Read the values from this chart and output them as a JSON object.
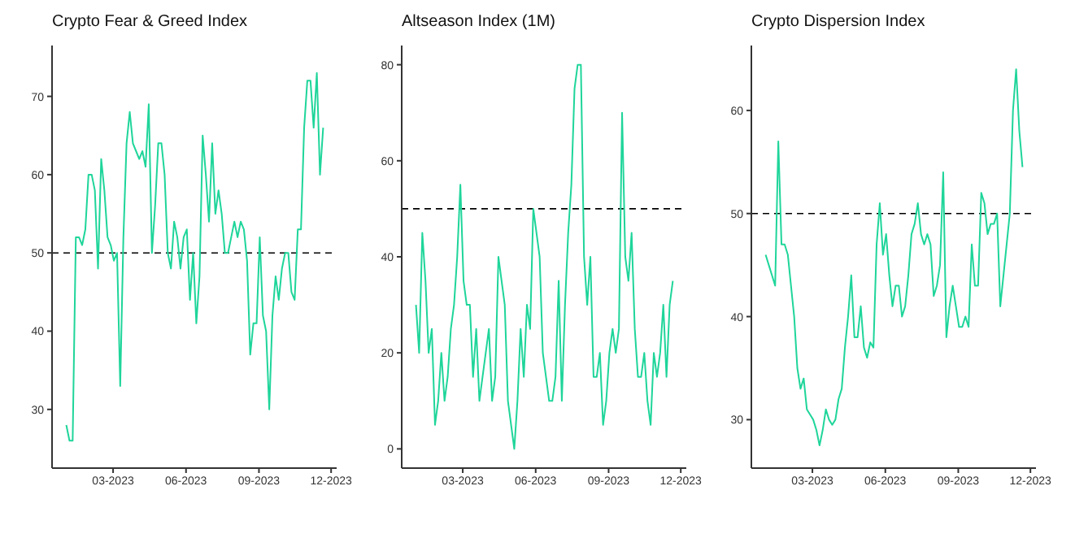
{
  "chart_data": [
    {
      "type": "line",
      "title": "Crypto Fear & Greed Index",
      "color": "#1fd59a",
      "x": [
        "2023-01-01",
        "2023-01-05",
        "2023-01-09",
        "2023-01-13",
        "2023-01-17",
        "2023-01-21",
        "2023-01-25",
        "2023-01-29",
        "2023-02-02",
        "2023-02-06",
        "2023-02-10",
        "2023-02-14",
        "2023-02-18",
        "2023-02-22",
        "2023-02-26",
        "2023-03-02",
        "2023-03-06",
        "2023-03-10",
        "2023-03-14",
        "2023-03-18",
        "2023-03-22",
        "2023-03-26",
        "2023-03-30",
        "2023-04-03",
        "2023-04-07",
        "2023-04-11",
        "2023-04-15",
        "2023-04-19",
        "2023-04-23",
        "2023-04-27",
        "2023-05-01",
        "2023-05-05",
        "2023-05-09",
        "2023-05-13",
        "2023-05-17",
        "2023-05-21",
        "2023-05-25",
        "2023-05-29",
        "2023-06-02",
        "2023-06-06",
        "2023-06-10",
        "2023-06-14",
        "2023-06-18",
        "2023-06-22",
        "2023-06-26",
        "2023-06-30",
        "2023-07-04",
        "2023-07-08",
        "2023-07-12",
        "2023-07-16",
        "2023-07-20",
        "2023-07-24",
        "2023-07-28",
        "2023-08-01",
        "2023-08-05",
        "2023-08-09",
        "2023-08-13",
        "2023-08-17",
        "2023-08-21",
        "2023-08-25",
        "2023-08-29",
        "2023-09-02",
        "2023-09-06",
        "2023-09-10",
        "2023-09-14",
        "2023-09-18",
        "2023-09-22",
        "2023-09-26",
        "2023-09-30",
        "2023-10-04",
        "2023-10-08",
        "2023-10-12",
        "2023-10-16",
        "2023-10-20",
        "2023-10-24",
        "2023-10-28",
        "2023-11-01",
        "2023-11-05",
        "2023-11-09",
        "2023-11-13",
        "2023-11-17",
        "2023-11-21"
      ],
      "values": [
        28,
        26,
        26,
        52,
        52,
        51,
        53,
        60,
        60,
        58,
        48,
        62,
        58,
        52,
        51,
        49,
        50,
        33,
        52,
        64,
        68,
        64,
        63,
        62,
        63,
        61,
        69,
        50,
        56,
        64,
        64,
        60,
        50,
        48,
        54,
        52,
        48,
        52,
        53,
        44,
        50,
        41,
        47,
        65,
        60,
        54,
        64,
        55,
        58,
        55,
        50,
        50,
        52,
        54,
        52,
        54,
        53,
        49,
        37,
        41,
        41,
        52,
        42,
        40,
        30,
        42,
        47,
        44,
        48,
        50,
        50,
        45,
        44,
        53,
        53,
        66,
        72,
        72,
        66,
        73,
        60,
        66
      ],
      "xlim": [
        "2022-12-14",
        "2023-12-08"
      ],
      "xticks": [
        {
          "value": "2023-03-01",
          "label": "03-2023"
        },
        {
          "value": "2023-06-01",
          "label": "06-2023"
        },
        {
          "value": "2023-09-01",
          "label": "09-2023"
        },
        {
          "value": "2023-12-01",
          "label": "12-2023"
        }
      ],
      "ylim": [
        22.5,
        76.5
      ],
      "yticks": [
        30,
        40,
        50,
        60,
        70
      ],
      "ref_lines": [
        {
          "axis": "y",
          "value": 50,
          "line_style": "dashed",
          "color": "#000000"
        }
      ]
    },
    {
      "type": "line",
      "title": "Altseason Index (1M)",
      "color": "#1fd59a",
      "x": [
        "2023-01-01",
        "2023-01-05",
        "2023-01-09",
        "2023-01-13",
        "2023-01-17",
        "2023-01-21",
        "2023-01-25",
        "2023-01-29",
        "2023-02-02",
        "2023-02-06",
        "2023-02-10",
        "2023-02-14",
        "2023-02-18",
        "2023-02-22",
        "2023-02-26",
        "2023-03-02",
        "2023-03-06",
        "2023-03-10",
        "2023-03-14",
        "2023-03-18",
        "2023-03-22",
        "2023-03-26",
        "2023-03-30",
        "2023-04-03",
        "2023-04-07",
        "2023-04-11",
        "2023-04-15",
        "2023-04-19",
        "2023-04-23",
        "2023-04-27",
        "2023-05-01",
        "2023-05-05",
        "2023-05-09",
        "2023-05-13",
        "2023-05-17",
        "2023-05-21",
        "2023-05-25",
        "2023-05-29",
        "2023-06-02",
        "2023-06-06",
        "2023-06-10",
        "2023-06-14",
        "2023-06-18",
        "2023-06-22",
        "2023-06-26",
        "2023-06-30",
        "2023-07-04",
        "2023-07-08",
        "2023-07-12",
        "2023-07-16",
        "2023-07-20",
        "2023-07-24",
        "2023-07-28",
        "2023-08-01",
        "2023-08-05",
        "2023-08-09",
        "2023-08-13",
        "2023-08-17",
        "2023-08-21",
        "2023-08-25",
        "2023-08-29",
        "2023-09-02",
        "2023-09-06",
        "2023-09-10",
        "2023-09-14",
        "2023-09-18",
        "2023-09-22",
        "2023-09-26",
        "2023-09-30",
        "2023-10-04",
        "2023-10-08",
        "2023-10-12",
        "2023-10-16",
        "2023-10-20",
        "2023-10-24",
        "2023-10-28",
        "2023-11-01",
        "2023-11-05",
        "2023-11-09",
        "2023-11-13",
        "2023-11-17",
        "2023-11-21"
      ],
      "values": [
        30,
        20,
        45,
        35,
        20,
        25,
        5,
        10,
        20,
        10,
        15,
        25,
        30,
        40,
        55,
        35,
        30,
        30,
        15,
        25,
        10,
        15,
        20,
        25,
        10,
        15,
        40,
        35,
        30,
        10,
        5,
        0,
        10,
        25,
        15,
        30,
        25,
        50,
        45,
        40,
        20,
        15,
        10,
        10,
        15,
        35,
        10,
        30,
        45,
        55,
        75,
        80,
        80,
        40,
        30,
        40,
        15,
        15,
        20,
        5,
        10,
        20,
        25,
        20,
        25,
        70,
        40,
        35,
        45,
        25,
        15,
        15,
        20,
        10,
        5,
        20,
        15,
        20,
        30,
        15,
        30,
        35
      ],
      "xlim": [
        "2022-12-14",
        "2023-12-08"
      ],
      "xticks": [
        {
          "value": "2023-03-01",
          "label": "03-2023"
        },
        {
          "value": "2023-06-01",
          "label": "06-2023"
        },
        {
          "value": "2023-09-01",
          "label": "09-2023"
        },
        {
          "value": "2023-12-01",
          "label": "12-2023"
        }
      ],
      "ylim": [
        -4,
        84
      ],
      "yticks": [
        0,
        20,
        40,
        60,
        80
      ],
      "ref_lines": [
        {
          "axis": "y",
          "value": 50,
          "line_style": "dashed",
          "color": "#000000"
        }
      ]
    },
    {
      "type": "line",
      "title": "Crypto Dispersion Index",
      "color": "#1fd59a",
      "x": [
        "2023-01-01",
        "2023-01-05",
        "2023-01-09",
        "2023-01-13",
        "2023-01-17",
        "2023-01-21",
        "2023-01-25",
        "2023-01-29",
        "2023-02-02",
        "2023-02-06",
        "2023-02-10",
        "2023-02-14",
        "2023-02-18",
        "2023-02-22",
        "2023-02-26",
        "2023-03-02",
        "2023-03-06",
        "2023-03-10",
        "2023-03-14",
        "2023-03-18",
        "2023-03-22",
        "2023-03-26",
        "2023-03-30",
        "2023-04-03",
        "2023-04-07",
        "2023-04-11",
        "2023-04-15",
        "2023-04-19",
        "2023-04-23",
        "2023-04-27",
        "2023-05-01",
        "2023-05-05",
        "2023-05-09",
        "2023-05-13",
        "2023-05-17",
        "2023-05-21",
        "2023-05-25",
        "2023-05-29",
        "2023-06-02",
        "2023-06-06",
        "2023-06-10",
        "2023-06-14",
        "2023-06-18",
        "2023-06-22",
        "2023-06-26",
        "2023-06-30",
        "2023-07-04",
        "2023-07-08",
        "2023-07-12",
        "2023-07-16",
        "2023-07-20",
        "2023-07-24",
        "2023-07-28",
        "2023-08-01",
        "2023-08-05",
        "2023-08-09",
        "2023-08-13",
        "2023-08-17",
        "2023-08-21",
        "2023-08-25",
        "2023-08-29",
        "2023-09-02",
        "2023-09-06",
        "2023-09-10",
        "2023-09-14",
        "2023-09-18",
        "2023-09-22",
        "2023-09-26",
        "2023-09-30",
        "2023-10-04",
        "2023-10-08",
        "2023-10-12",
        "2023-10-16",
        "2023-10-20",
        "2023-10-24",
        "2023-10-28",
        "2023-11-01",
        "2023-11-05",
        "2023-11-09",
        "2023-11-13",
        "2023-11-17",
        "2023-11-21"
      ],
      "values": [
        46,
        45,
        44,
        43,
        57,
        47,
        47,
        46,
        43,
        40,
        35,
        33,
        34,
        31,
        30.5,
        30,
        29,
        27.5,
        29,
        31,
        30,
        29.5,
        30,
        32,
        33,
        37,
        40,
        44,
        38,
        38,
        41,
        37,
        36,
        37.5,
        37,
        47,
        51,
        46,
        48,
        44,
        41,
        43,
        43,
        40,
        41,
        44,
        48,
        49,
        51,
        48,
        47,
        48,
        47,
        42,
        43,
        45,
        54,
        38,
        41,
        43,
        41,
        39,
        39,
        40,
        39,
        47,
        43,
        43,
        52,
        51,
        48,
        49,
        49,
        50,
        41,
        44,
        47,
        50,
        60,
        64,
        58,
        54.5
      ],
      "xlim": [
        "2022-12-14",
        "2023-12-08"
      ],
      "xticks": [
        {
          "value": "2023-03-01",
          "label": "03-2023"
        },
        {
          "value": "2023-06-01",
          "label": "06-2023"
        },
        {
          "value": "2023-09-01",
          "label": "09-2023"
        },
        {
          "value": "2023-12-01",
          "label": "12-2023"
        }
      ],
      "ylim": [
        25.3,
        66.3
      ],
      "yticks": [
        30,
        40,
        50,
        60
      ],
      "ref_lines": [
        {
          "axis": "y",
          "value": 50,
          "line_style": "dashed",
          "color": "#000000"
        }
      ]
    }
  ]
}
